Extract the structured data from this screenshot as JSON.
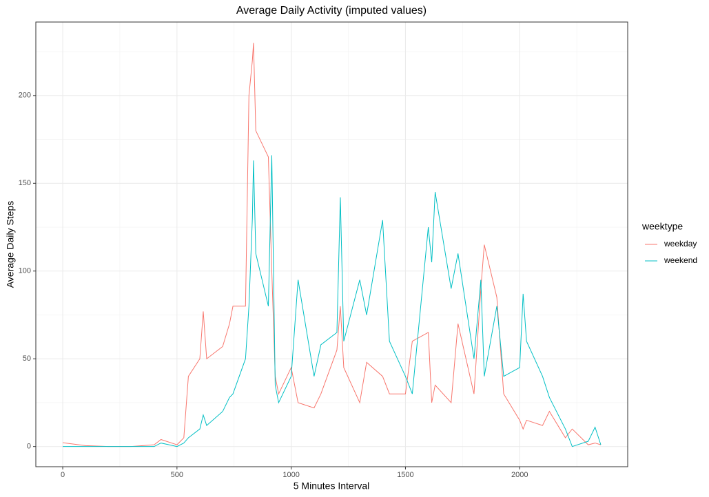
{
  "chart_data": {
    "type": "line",
    "title": "Average Daily Activity (imputed values)",
    "x_label": "5 Minutes Interval",
    "y_label": "Average Daily Steps",
    "legend_title": "weektype",
    "legend_position": "right",
    "grid": true,
    "xlim": [
      -117.75,
      2472.75
    ],
    "xticks": [
      0,
      500,
      1000,
      1500,
      2000
    ],
    "xminor": [
      250,
      750,
      1250,
      1750,
      2250
    ],
    "ylim": [
      -11.5,
      241.9
    ],
    "yticks": [
      0,
      50,
      100,
      150,
      200
    ],
    "yminor": [
      25,
      75,
      125,
      175,
      225
    ],
    "x": [
      0,
      100,
      200,
      300,
      400,
      430,
      500,
      530,
      550,
      600,
      615,
      630,
      700,
      730,
      745,
      800,
      815,
      830,
      835,
      845,
      900,
      915,
      930,
      945,
      1000,
      1030,
      1100,
      1130,
      1200,
      1215,
      1230,
      1300,
      1330,
      1400,
      1430,
      1500,
      1530,
      1600,
      1615,
      1630,
      1700,
      1730,
      1800,
      1830,
      1845,
      1900,
      1930,
      2000,
      2015,
      2030,
      2100,
      2130,
      2200,
      2230,
      2300,
      2330,
      2355
    ],
    "series": [
      {
        "name": "weekday",
        "color": "#F8766D",
        "values": [
          2.2,
          0.5,
          0,
          0,
          1,
          4,
          1,
          5,
          40,
          50,
          77,
          50,
          57,
          70,
          80,
          80,
          200,
          220,
          230,
          180,
          165,
          100,
          40,
          30,
          45,
          25,
          22,
          30,
          55,
          80,
          45,
          25,
          48,
          40,
          30,
          30,
          60,
          65,
          25,
          35,
          25,
          70,
          30,
          90,
          115,
          85,
          30,
          15,
          10,
          15,
          12,
          20,
          5,
          10,
          1,
          2,
          1
        ]
      },
      {
        "name": "weekend",
        "color": "#00BFC4",
        "values": [
          0,
          0,
          0,
          0,
          0,
          2,
          0,
          2,
          5,
          10,
          18,
          12,
          20,
          28,
          30,
          50,
          80,
          130,
          163,
          110,
          80,
          166,
          35,
          25,
          40,
          95,
          40,
          58,
          65,
          142,
          60,
          95,
          75,
          129,
          60,
          40,
          30,
          125,
          105,
          145,
          90,
          110,
          50,
          95,
          40,
          80,
          40,
          45,
          87,
          60,
          40,
          28,
          10,
          0,
          3,
          11,
          1
        ]
      }
    ]
  }
}
